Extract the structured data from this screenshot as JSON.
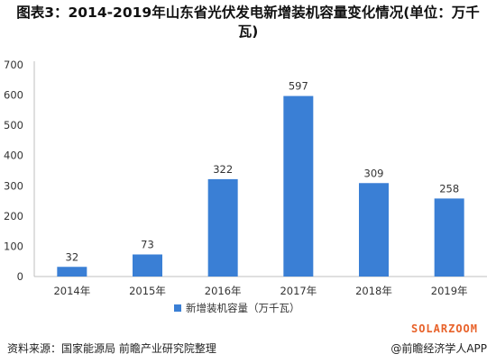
{
  "header": {
    "title": "图表3：2014-2019年山东省光伏发电新增装机容量变化情况(单位：万千瓦)"
  },
  "footer": {
    "source": "资料来源：国家能源局 前瞻产业研究院整理",
    "app": "@前瞻经济学人APP",
    "brand": "SOLARZOOM"
  },
  "colors": {
    "bar": "#3a7fd5",
    "axis": "#bfbfbf",
    "text": "#333333"
  },
  "chart_data": {
    "type": "bar",
    "categories": [
      "2014年",
      "2015年",
      "2016年",
      "2017年",
      "2018年",
      "2019年"
    ],
    "series": [
      {
        "name": "新增装机容量（万千瓦）",
        "values": [
          32,
          73,
          322,
          597,
          309,
          258
        ]
      }
    ],
    "yticks": [
      0,
      100,
      200,
      300,
      400,
      500,
      600,
      700
    ],
    "ylim": [
      0,
      700
    ],
    "grid": false,
    "legend": "bottom-center"
  }
}
